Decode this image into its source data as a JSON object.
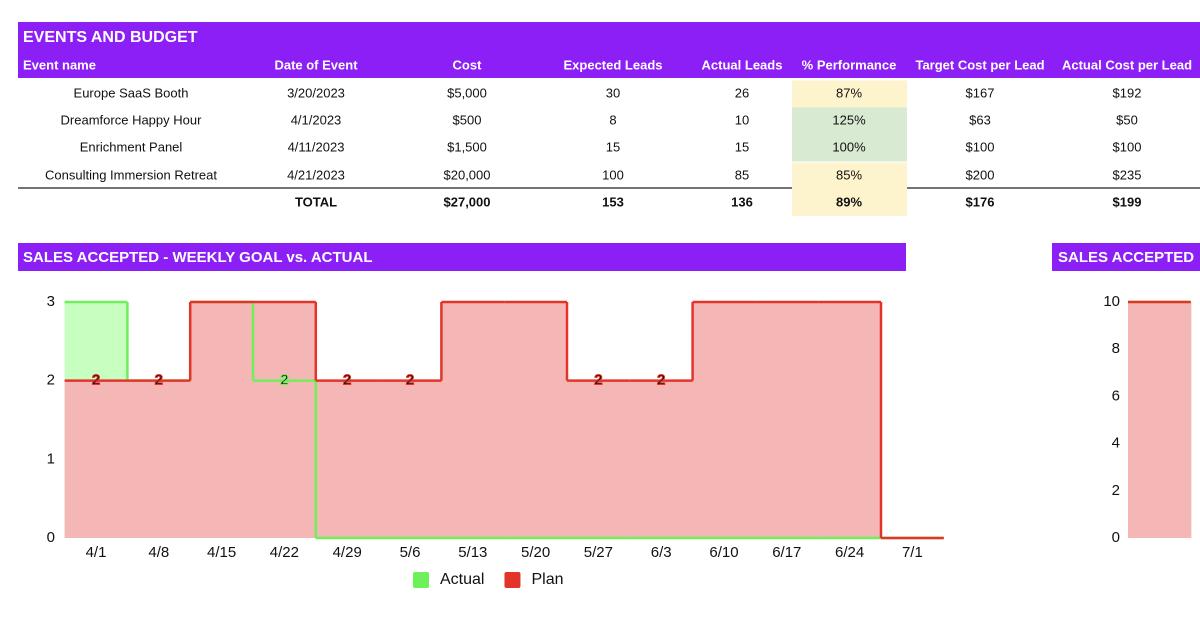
{
  "table": {
    "title": "EVENTS AND BUDGET",
    "columns": [
      "Event name",
      "Date of Event",
      "Cost",
      "Expected Leads",
      "Actual Leads",
      "% Performance",
      "Target Cost per Lead",
      "Actual Cost per Lead"
    ],
    "rows": [
      [
        "Europe SaaS Booth",
        "3/20/2023",
        "$5,000",
        30,
        26,
        "87%",
        "$167",
        "$192"
      ],
      [
        "Dreamforce Happy Hour",
        "4/1/2023",
        "$500",
        8,
        10,
        "125%",
        "$63",
        "$50"
      ],
      [
        "Enrichment Panel",
        "4/11/2023",
        "$1,500",
        15,
        15,
        "100%",
        "$100",
        "$100"
      ],
      [
        "Consulting Immersion Retreat",
        "4/21/2023",
        "$20,000",
        100,
        85,
        "85%",
        "$200",
        "$235"
      ]
    ],
    "total": {
      "label": "TOTAL",
      "cells": [
        "$27,000",
        153,
        136,
        "89%",
        "$176",
        "$199"
      ]
    },
    "performance_colors": [
      "#fdf3cd",
      "#d9ead3",
      "#d9ead3",
      "#fdf3cd"
    ],
    "total_performance_color": "#fdf3cd"
  },
  "chart_data": [
    {
      "type": "step-area",
      "title": "SALES ACCEPTED - WEEKLY GOAL vs. ACTUAL",
      "categories": [
        "4/1",
        "4/8",
        "4/15",
        "4/22",
        "4/29",
        "5/6",
        "5/13",
        "5/20",
        "5/27",
        "6/3",
        "6/10",
        "6/17",
        "6/24",
        "7/1"
      ],
      "series": [
        {
          "name": "Actual",
          "color": "#6ef05a",
          "fill": "#c6ffbf",
          "values": [
            3,
            2,
            3,
            2,
            0,
            0,
            0,
            0,
            0,
            0,
            0,
            0,
            0,
            0
          ],
          "value_labels": [
            null,
            null,
            null,
            "2",
            null,
            null,
            null,
            null,
            null,
            null,
            null,
            null,
            null,
            null
          ]
        },
        {
          "name": "Plan",
          "color": "#e3342a",
          "fill": "#f5b6b6",
          "values": [
            2,
            2,
            3,
            3,
            2,
            2,
            3,
            3,
            2,
            2,
            3,
            3,
            3,
            0
          ],
          "value_labels": [
            "2",
            "2",
            null,
            null,
            "2",
            "2",
            null,
            null,
            "2",
            "2",
            null,
            null,
            null,
            null
          ]
        }
      ],
      "ylim": [
        0,
        3
      ],
      "yticks": [
        0,
        1,
        2,
        3
      ],
      "legend": "bottom"
    },
    {
      "type": "step-area",
      "title": "SALES ACCEPTED",
      "series": [
        {
          "color": "#6ef05a",
          "fill": "#c6ffbf",
          "values": [
            10
          ]
        },
        {
          "color": "#e3342a",
          "fill": "#f5b6b6",
          "values": [
            10
          ]
        }
      ],
      "ylim": [
        0,
        10
      ],
      "yticks": [
        0,
        2,
        4,
        6,
        8,
        10
      ]
    }
  ]
}
